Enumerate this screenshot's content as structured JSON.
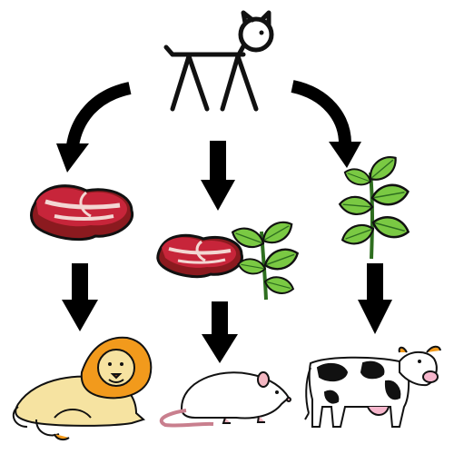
{
  "diagram": {
    "top": {
      "icon": "animal-stick-figure-icon"
    },
    "branches": [
      {
        "food": [
          "meat"
        ],
        "result": "lion",
        "icons": [
          "meat-icon",
          "lion-icon"
        ]
      },
      {
        "food": [
          "meat",
          "plant"
        ],
        "result": "rat",
        "icons": [
          "meat-icon",
          "plant-icon",
          "rat-icon"
        ]
      },
      {
        "food": [
          "plant"
        ],
        "result": "cow",
        "icons": [
          "plant-icon",
          "cow-icon"
        ]
      }
    ]
  },
  "colors": {
    "arrow": "#000000",
    "meat_dark": "#8b1a1f",
    "meat_mid": "#c7253a",
    "meat_fat": "#f3d7d3",
    "leaf": "#7ac943",
    "stem": "#2e6e1f",
    "lion_body": "#f6e3a1",
    "lion_mane": "#f29a1c",
    "rat": "#ffffff",
    "rat_pink": "#f4b7c2",
    "cow_spot": "#111111",
    "cow_udder": "#f6b6cc"
  }
}
